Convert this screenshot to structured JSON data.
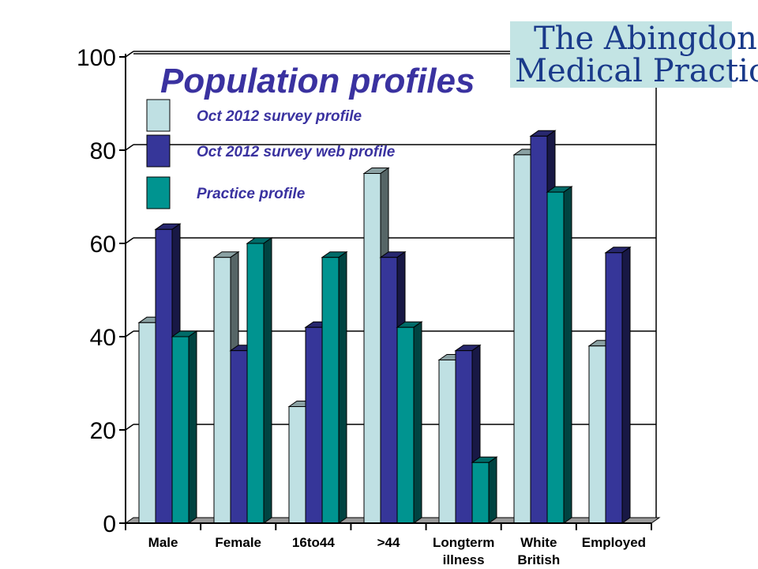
{
  "chart_data": {
    "type": "bar",
    "title": "Population profiles",
    "categories": [
      [
        "Male"
      ],
      [
        "Female"
      ],
      [
        "16to44"
      ],
      [
        ">44"
      ],
      [
        "Longterm",
        "illness"
      ],
      [
        "White",
        "British"
      ],
      [
        "Employed"
      ]
    ],
    "series": [
      {
        "name": "Oct 2012 survey profile",
        "values": [
          43,
          57,
          25,
          75,
          35,
          79,
          38
        ],
        "color": "#bfe0e3"
      },
      {
        "name": "Oct 2012 survey web profile",
        "values": [
          63,
          37,
          42,
          57,
          37,
          83,
          58
        ],
        "color": "#363699"
      },
      {
        "name": "Practice profile",
        "values": [
          40,
          60,
          57,
          42,
          13,
          71,
          null
        ],
        "color": "#009490"
      }
    ],
    "yticks": [
      "0",
      "20",
      "40",
      "60",
      "80",
      "100"
    ],
    "ylim": [
      0,
      100
    ],
    "grid": true,
    "legend_position": "top-left, inside plot",
    "is_3d": true
  },
  "logo": {
    "line1": "The Abingdon",
    "line2": "Medical Practice",
    "background": "#c3e4e4"
  },
  "colors": {
    "title": "#3a32a0",
    "legend_text": "#3a32a0"
  }
}
